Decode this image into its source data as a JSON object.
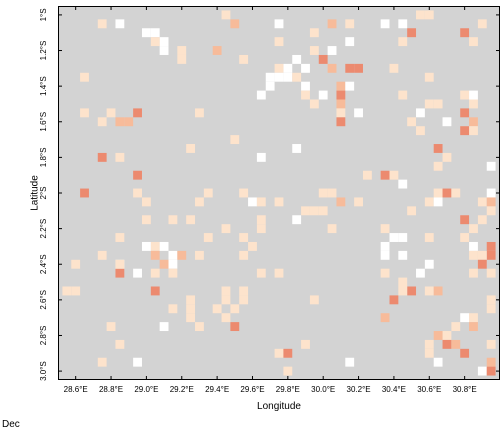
{
  "caption": "Dec",
  "colors": {
    "background_cell": "#d3d3d3",
    "palette": [
      "#ffffff",
      "#fde3cc",
      "#f7bb9a",
      "#ec8a6f"
    ]
  },
  "chart_data": {
    "type": "heatmap",
    "title": "",
    "xlabel": "Longitude",
    "ylabel": "Latitude",
    "xlim": [
      28.5,
      31.0
    ],
    "ylim": [
      -3.05,
      -0.95
    ],
    "x_ticks": [
      "28.6°E",
      "28.8°E",
      "29.0°E",
      "29.2°E",
      "29.4°E",
      "29.6°E",
      "29.8°E",
      "30.0°E",
      "30.2°E",
      "30.4°E",
      "30.6°E",
      "30.8°E"
    ],
    "x_tick_values": [
      28.6,
      28.8,
      29.0,
      29.2,
      29.4,
      29.6,
      29.8,
      30.0,
      30.2,
      30.4,
      30.6,
      30.8
    ],
    "y_ticks": [
      "1°S",
      "1.2°S",
      "1.4°S",
      "1.6°S",
      "1.8°S",
      "2°S",
      "2.2°S",
      "2.4°S",
      "2.6°S",
      "2.8°S",
      "3.0°S"
    ],
    "y_tick_values": [
      -1.0,
      -1.2,
      -1.4,
      -1.6,
      -1.8,
      -2.0,
      -2.2,
      -2.4,
      -2.6,
      -2.8,
      -3.0
    ],
    "grid": false,
    "cell_size_deg": 0.05,
    "cells": [
      [
        30.55,
        -1.0,
        1
      ],
      [
        30.6,
        -1.0,
        1
      ],
      [
        29.45,
        -1.0,
        1
      ],
      [
        30.05,
        -1.05,
        2
      ],
      [
        30.15,
        -1.05,
        1
      ],
      [
        30.35,
        -1.05,
        0
      ],
      [
        30.45,
        -1.05,
        0
      ],
      [
        29.5,
        -1.05,
        2
      ],
      [
        29.75,
        -1.05,
        0
      ],
      [
        28.75,
        -1.05,
        1
      ],
      [
        28.85,
        -1.05,
        0
      ],
      [
        30.9,
        -1.05,
        1
      ],
      [
        30.8,
        -1.1,
        3
      ],
      [
        30.5,
        -1.1,
        3
      ],
      [
        29.95,
        -1.1,
        1
      ],
      [
        29.0,
        -1.1,
        0
      ],
      [
        29.05,
        -1.1,
        0
      ],
      [
        29.1,
        -1.15,
        0
      ],
      [
        29.05,
        -1.15,
        1
      ],
      [
        29.2,
        -1.2,
        1
      ],
      [
        29.1,
        -1.2,
        0
      ],
      [
        29.4,
        -1.2,
        2
      ],
      [
        29.75,
        -1.15,
        1
      ],
      [
        30.15,
        -1.15,
        0
      ],
      [
        29.95,
        -1.2,
        1
      ],
      [
        30.85,
        -1.15,
        1
      ],
      [
        30.05,
        -1.2,
        0
      ],
      [
        30.45,
        -1.15,
        1
      ],
      [
        29.2,
        -1.25,
        1
      ],
      [
        29.55,
        -1.25,
        1
      ],
      [
        29.85,
        -1.25,
        0
      ],
      [
        30.0,
        -1.25,
        3
      ],
      [
        30.15,
        -1.3,
        3
      ],
      [
        30.2,
        -1.3,
        3
      ],
      [
        30.05,
        -1.3,
        2
      ],
      [
        29.8,
        -1.3,
        0
      ],
      [
        29.75,
        -1.3,
        1
      ],
      [
        29.9,
        -1.3,
        0
      ],
      [
        30.4,
        -1.3,
        1
      ],
      [
        29.7,
        -1.35,
        0
      ],
      [
        29.75,
        -1.35,
        0
      ],
      [
        29.8,
        -1.35,
        0
      ],
      [
        29.85,
        -1.35,
        1
      ],
      [
        28.65,
        -1.35,
        1
      ],
      [
        30.6,
        -1.35,
        1
      ],
      [
        29.7,
        -1.4,
        0
      ],
      [
        30.1,
        -1.4,
        2
      ],
      [
        30.15,
        -1.4,
        0
      ],
      [
        29.9,
        -1.4,
        0
      ],
      [
        29.65,
        -1.45,
        0
      ],
      [
        29.9,
        -1.45,
        1
      ],
      [
        30.0,
        -1.45,
        0
      ],
      [
        30.1,
        -1.45,
        3
      ],
      [
        30.45,
        -1.45,
        1
      ],
      [
        30.8,
        -1.45,
        1
      ],
      [
        30.85,
        -1.45,
        0
      ],
      [
        30.1,
        -1.5,
        2
      ],
      [
        29.95,
        -1.5,
        1
      ],
      [
        30.6,
        -1.5,
        1
      ],
      [
        30.65,
        -1.5,
        1
      ],
      [
        30.85,
        -1.5,
        1
      ],
      [
        30.55,
        -1.55,
        0
      ],
      [
        30.1,
        -1.55,
        1
      ],
      [
        30.1,
        -1.6,
        3
      ],
      [
        30.2,
        -1.55,
        0
      ],
      [
        30.8,
        -1.55,
        3
      ],
      [
        28.65,
        -1.55,
        1
      ],
      [
        28.8,
        -1.55,
        1
      ],
      [
        28.75,
        -1.6,
        1
      ],
      [
        28.85,
        -1.6,
        2
      ],
      [
        28.9,
        -1.6,
        2
      ],
      [
        28.95,
        -1.55,
        3
      ],
      [
        29.3,
        -1.55,
        1
      ],
      [
        30.5,
        -1.6,
        1
      ],
      [
        30.7,
        -1.6,
        0
      ],
      [
        30.85,
        -1.6,
        2
      ],
      [
        30.55,
        -1.65,
        1
      ],
      [
        30.85,
        -1.65,
        1
      ],
      [
        30.8,
        -1.65,
        3
      ],
      [
        29.5,
        -1.7,
        1
      ],
      [
        29.25,
        -1.75,
        1
      ],
      [
        30.65,
        -1.75,
        3
      ],
      [
        29.65,
        -1.8,
        0
      ],
      [
        29.85,
        -1.75,
        0
      ],
      [
        30.7,
        -1.8,
        1
      ],
      [
        28.75,
        -1.8,
        3
      ],
      [
        28.85,
        -1.8,
        1
      ],
      [
        30.65,
        -1.85,
        1
      ],
      [
        30.95,
        -1.85,
        0
      ],
      [
        28.95,
        -1.9,
        3
      ],
      [
        30.4,
        -1.9,
        1
      ],
      [
        30.35,
        -1.9,
        3
      ],
      [
        30.25,
        -1.9,
        1
      ],
      [
        30.45,
        -1.95,
        0
      ],
      [
        28.65,
        -2.0,
        3
      ],
      [
        28.95,
        -2.0,
        1
      ],
      [
        30.0,
        -2.0,
        1
      ],
      [
        30.05,
        -2.0,
        1
      ],
      [
        30.65,
        -2.0,
        1
      ],
      [
        30.7,
        -2.0,
        3
      ],
      [
        30.75,
        -2.0,
        1
      ],
      [
        30.95,
        -2.0,
        0
      ],
      [
        29.35,
        -2.0,
        1
      ],
      [
        29.55,
        -2.0,
        1
      ],
      [
        29.0,
        -2.05,
        1
      ],
      [
        29.3,
        -2.05,
        1
      ],
      [
        30.2,
        -2.05,
        1
      ],
      [
        30.1,
        -2.05,
        2
      ],
      [
        30.9,
        -2.05,
        1
      ],
      [
        30.95,
        -2.05,
        2
      ],
      [
        29.6,
        -2.05,
        0
      ],
      [
        29.65,
        -2.05,
        1
      ],
      [
        29.75,
        -2.05,
        1
      ],
      [
        30.6,
        -2.05,
        1
      ],
      [
        30.65,
        -2.05,
        0
      ],
      [
        30.95,
        -2.1,
        1
      ],
      [
        29.9,
        -2.1,
        1
      ],
      [
        29.95,
        -2.1,
        1
      ],
      [
        30.0,
        -2.1,
        1
      ],
      [
        30.5,
        -2.1,
        1
      ],
      [
        29.85,
        -2.15,
        0
      ],
      [
        29.15,
        -2.15,
        1
      ],
      [
        29.25,
        -2.15,
        1
      ],
      [
        29.0,
        -2.15,
        1
      ],
      [
        30.8,
        -2.15,
        3
      ],
      [
        29.65,
        -2.2,
        1
      ],
      [
        29.45,
        -2.2,
        1
      ],
      [
        29.65,
        -2.15,
        1
      ],
      [
        30.05,
        -2.2,
        1
      ],
      [
        30.85,
        -2.2,
        1
      ],
      [
        30.9,
        -2.15,
        1
      ],
      [
        30.35,
        -2.2,
        1
      ],
      [
        30.4,
        -2.25,
        0
      ],
      [
        30.45,
        -2.25,
        0
      ],
      [
        28.85,
        -2.25,
        1
      ],
      [
        29.35,
        -2.25,
        1
      ],
      [
        29.55,
        -2.25,
        1
      ],
      [
        29.05,
        -2.3,
        1
      ],
      [
        29.6,
        -2.3,
        1
      ],
      [
        30.35,
        -2.3,
        0
      ],
      [
        30.6,
        -2.25,
        1
      ],
      [
        30.8,
        -2.25,
        1
      ],
      [
        30.85,
        -2.3,
        0
      ],
      [
        30.95,
        -2.3,
        3
      ],
      [
        29.0,
        -2.3,
        0
      ],
      [
        28.75,
        -2.35,
        1
      ],
      [
        29.05,
        -2.35,
        2
      ],
      [
        29.15,
        -2.35,
        0
      ],
      [
        29.1,
        -2.3,
        0
      ],
      [
        29.2,
        -2.35,
        2
      ],
      [
        29.55,
        -2.35,
        1
      ],
      [
        28.85,
        -2.4,
        0
      ],
      [
        29.15,
        -2.4,
        0
      ],
      [
        29.1,
        -2.4,
        2
      ],
      [
        29.3,
        -2.35,
        1
      ],
      [
        30.35,
        -2.35,
        0
      ],
      [
        30.45,
        -2.35,
        0
      ],
      [
        30.85,
        -2.35,
        1
      ],
      [
        30.95,
        -2.35,
        3
      ],
      [
        30.9,
        -2.35,
        1
      ],
      [
        28.6,
        -2.4,
        1
      ],
      [
        28.85,
        -2.45,
        3
      ],
      [
        28.85,
        -2.4,
        1
      ],
      [
        28.95,
        -2.45,
        0
      ],
      [
        29.05,
        -2.45,
        1
      ],
      [
        29.15,
        -2.45,
        1
      ],
      [
        30.35,
        -2.45,
        1
      ],
      [
        30.55,
        -2.45,
        0
      ],
      [
        30.85,
        -2.45,
        1
      ],
      [
        29.65,
        -2.45,
        1
      ],
      [
        29.75,
        -2.45,
        1
      ],
      [
        30.95,
        -2.45,
        1
      ],
      [
        30.45,
        -2.5,
        1
      ],
      [
        30.9,
        -2.4,
        3
      ],
      [
        30.6,
        -2.4,
        0
      ],
      [
        28.55,
        -2.55,
        1
      ],
      [
        28.6,
        -2.55,
        1
      ],
      [
        29.05,
        -2.55,
        3
      ],
      [
        29.45,
        -2.55,
        1
      ],
      [
        29.55,
        -2.55,
        1
      ],
      [
        30.5,
        -2.55,
        3
      ],
      [
        30.6,
        -2.55,
        1
      ],
      [
        30.4,
        -2.6,
        3
      ],
      [
        30.45,
        -2.55,
        1
      ],
      [
        30.65,
        -2.55,
        2
      ],
      [
        29.95,
        -2.6,
        1
      ],
      [
        29.25,
        -2.6,
        1
      ],
      [
        29.45,
        -2.6,
        1
      ],
      [
        29.55,
        -2.6,
        1
      ],
      [
        30.95,
        -2.6,
        1
      ],
      [
        29.15,
        -2.65,
        1
      ],
      [
        29.25,
        -2.65,
        1
      ],
      [
        29.4,
        -2.65,
        1
      ],
      [
        29.5,
        -2.65,
        1
      ],
      [
        30.95,
        -2.65,
        1
      ],
      [
        30.35,
        -2.7,
        2
      ],
      [
        29.25,
        -2.7,
        1
      ],
      [
        29.45,
        -2.7,
        1
      ],
      [
        28.8,
        -2.75,
        1
      ],
      [
        29.1,
        -2.75,
        0
      ],
      [
        29.3,
        -2.75,
        1
      ],
      [
        29.5,
        -2.75,
        3
      ],
      [
        30.8,
        -2.7,
        0
      ],
      [
        30.75,
        -2.75,
        1
      ],
      [
        30.85,
        -2.7,
        1
      ],
      [
        30.85,
        -2.75,
        2
      ],
      [
        30.7,
        -2.8,
        1
      ],
      [
        30.65,
        -2.8,
        2
      ],
      [
        28.85,
        -2.85,
        1
      ],
      [
        29.9,
        -2.85,
        1
      ],
      [
        30.7,
        -2.85,
        3
      ],
      [
        30.6,
        -2.85,
        1
      ],
      [
        30.75,
        -2.85,
        2
      ],
      [
        30.95,
        -2.85,
        1
      ],
      [
        29.75,
        -2.9,
        1
      ],
      [
        29.8,
        -2.9,
        3
      ],
      [
        30.8,
        -2.9,
        3
      ],
      [
        30.6,
        -2.9,
        1
      ],
      [
        28.75,
        -2.95,
        1
      ],
      [
        28.95,
        -2.95,
        0
      ],
      [
        30.15,
        -2.95,
        0
      ],
      [
        30.65,
        -2.95,
        0
      ],
      [
        30.95,
        -2.95,
        2
      ],
      [
        29.8,
        -3.0,
        1
      ],
      [
        30.9,
        -3.0,
        0
      ],
      [
        30.95,
        -3.0,
        3
      ]
    ]
  }
}
